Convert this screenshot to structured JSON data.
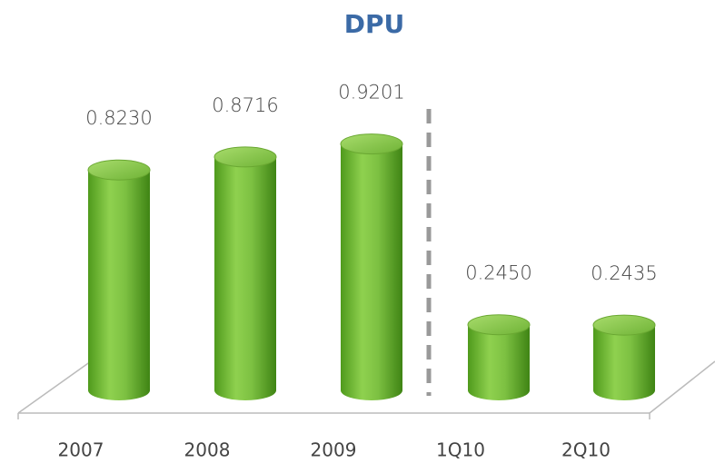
{
  "chart_data": {
    "type": "bar",
    "title": "DPU",
    "categories": [
      "2007",
      "2008",
      "2009",
      "1Q10",
      "2Q10"
    ],
    "values": [
      0.823,
      0.8716,
      0.9201,
      0.245,
      0.2435
    ],
    "value_labels": [
      "0.8230",
      "0.8716",
      "0.9201",
      "0.2450",
      "0.2435"
    ],
    "color": "#7dc142"
  }
}
